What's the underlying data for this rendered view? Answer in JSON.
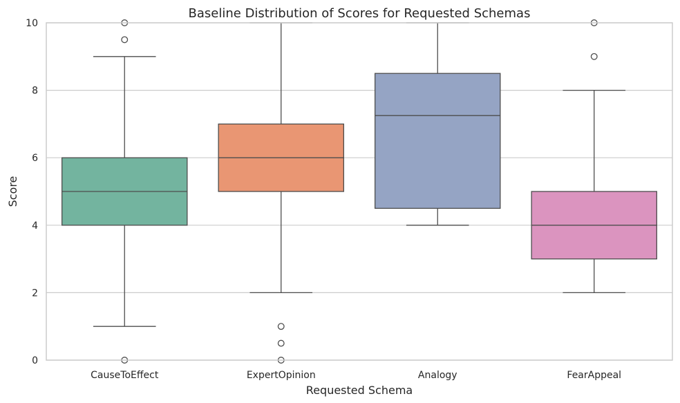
{
  "chart_data": {
    "type": "box",
    "title": "Baseline Distribution of Scores for Requested Schemas",
    "xlabel": "Requested Schema",
    "ylabel": "Score",
    "ylim": [
      0,
      10
    ],
    "yticks": [
      "0",
      "2",
      "4",
      "6",
      "8",
      "10"
    ],
    "grid": "horizontal",
    "categories": [
      "CauseToEffect",
      "ExpertOpinion",
      "Analogy",
      "FearAppeal"
    ],
    "boxes": [
      {
        "q1": 4,
        "median": 5,
        "q3": 6,
        "whisker_low": 1,
        "whisker_high": 9,
        "outliers": [
          0,
          9.5,
          10
        ],
        "color": "#73b49f"
      },
      {
        "q1": 5,
        "median": 6,
        "q3": 7,
        "whisker_low": 2,
        "whisker_high": 10,
        "outliers": [
          0,
          0.5,
          1
        ],
        "color": "#e99673"
      },
      {
        "q1": 4.5,
        "median": 7.25,
        "q3": 8.5,
        "whisker_low": 4,
        "whisker_high": 10,
        "outliers": [],
        "color": "#95a4c4"
      },
      {
        "q1": 3,
        "median": 4,
        "q3": 5,
        "whisker_low": 2,
        "whisker_high": 8,
        "outliers": [
          9,
          10
        ],
        "color": "#db94bf"
      }
    ]
  }
}
